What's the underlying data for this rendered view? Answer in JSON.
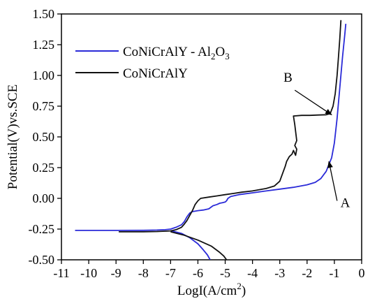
{
  "chart_data": {
    "type": "line",
    "xlabel": {
      "main": "LogI(A/cm",
      "sup": "2",
      "end": ")"
    },
    "ylabel": "Potential(V)vs.SCE",
    "xlim": [
      -11,
      0
    ],
    "ylim": [
      -0.5,
      1.5
    ],
    "x_ticks": [
      "-11",
      "-10",
      "-9",
      "-8",
      "-7",
      "-6",
      "-5",
      "-4",
      "-3",
      "-2",
      "-1",
      "0"
    ],
    "y_ticks": [
      "-0.50",
      "-0.25",
      "0.00",
      "0.25",
      "0.50",
      "0.75",
      "1.00",
      "1.25",
      "1.50"
    ],
    "legend_position": "top-left",
    "colors": {
      "blue": "#2a2ad8",
      "black": "#111111"
    },
    "series": [
      {
        "legend": {
          "part1": "CoNiCrAlY - Al",
          "sub1": "2",
          "part2": "O",
          "sub2": "3"
        },
        "color": "blue",
        "anodic": [
          [
            -10.5,
            -0.261
          ],
          [
            -9.0,
            -0.261
          ],
          [
            -8.0,
            -0.26
          ],
          [
            -7.5,
            -0.258
          ],
          [
            -7.2,
            -0.255
          ],
          [
            -7.0,
            -0.25
          ],
          [
            -6.8,
            -0.235
          ],
          [
            -6.6,
            -0.215
          ],
          [
            -6.5,
            -0.19
          ],
          [
            -6.4,
            -0.15
          ],
          [
            -6.3,
            -0.12
          ],
          [
            -6.2,
            -0.108
          ],
          [
            -6.0,
            -0.1
          ],
          [
            -5.8,
            -0.095
          ],
          [
            -5.6,
            -0.085
          ],
          [
            -5.45,
            -0.06
          ],
          [
            -5.3,
            -0.05
          ],
          [
            -5.2,
            -0.04
          ],
          [
            -5.1,
            -0.035
          ],
          [
            -5.0,
            -0.03
          ],
          [
            -4.95,
            -0.02
          ],
          [
            -4.9,
            0.0
          ],
          [
            -4.8,
            0.015
          ],
          [
            -4.5,
            0.03
          ],
          [
            -4.0,
            0.045
          ],
          [
            -3.5,
            0.06
          ],
          [
            -3.0,
            0.075
          ],
          [
            -2.5,
            0.09
          ],
          [
            -2.0,
            0.11
          ],
          [
            -1.7,
            0.13
          ],
          [
            -1.5,
            0.16
          ],
          [
            -1.3,
            0.22
          ],
          [
            -1.1,
            0.33
          ],
          [
            -1.0,
            0.45
          ],
          [
            -0.9,
            0.65
          ],
          [
            -0.8,
            0.9
          ],
          [
            -0.7,
            1.15
          ],
          [
            -0.62,
            1.33
          ],
          [
            -0.58,
            1.42
          ]
        ],
        "cathodic": [
          [
            -7.0,
            -0.262
          ],
          [
            -6.6,
            -0.285
          ],
          [
            -6.3,
            -0.32
          ],
          [
            -6.0,
            -0.37
          ],
          [
            -5.8,
            -0.42
          ],
          [
            -5.65,
            -0.46
          ],
          [
            -5.55,
            -0.5
          ]
        ]
      },
      {
        "legend": "CoNiCrAlY",
        "color": "black",
        "anodic": [
          [
            -8.9,
            -0.272
          ],
          [
            -8.0,
            -0.272
          ],
          [
            -7.5,
            -0.27
          ],
          [
            -7.0,
            -0.265
          ],
          [
            -6.8,
            -0.255
          ],
          [
            -6.6,
            -0.235
          ],
          [
            -6.5,
            -0.21
          ],
          [
            -6.4,
            -0.18
          ],
          [
            -6.3,
            -0.14
          ],
          [
            -6.2,
            -0.1
          ],
          [
            -6.1,
            -0.05
          ],
          [
            -6.0,
            -0.02
          ],
          [
            -5.9,
            0.0
          ],
          [
            -5.6,
            0.01
          ],
          [
            -5.3,
            0.02
          ],
          [
            -5.0,
            0.03
          ],
          [
            -4.7,
            0.04
          ],
          [
            -4.4,
            0.05
          ],
          [
            -4.0,
            0.06
          ],
          [
            -3.5,
            0.08
          ],
          [
            -3.2,
            0.1
          ],
          [
            -3.0,
            0.14
          ],
          [
            -2.9,
            0.2
          ],
          [
            -2.8,
            0.26
          ],
          [
            -2.75,
            0.3
          ],
          [
            -2.65,
            0.34
          ],
          [
            -2.55,
            0.36
          ],
          [
            -2.5,
            0.39
          ],
          [
            -2.42,
            0.35
          ],
          [
            -2.38,
            0.4
          ],
          [
            -2.45,
            0.43
          ],
          [
            -2.38,
            0.47
          ],
          [
            -2.45,
            0.6
          ],
          [
            -2.5,
            0.67
          ],
          [
            -2.2,
            0.675
          ],
          [
            -1.9,
            0.675
          ],
          [
            -1.6,
            0.678
          ],
          [
            -1.3,
            0.68
          ],
          [
            -1.15,
            0.69
          ],
          [
            -1.05,
            0.75
          ],
          [
            -0.97,
            0.85
          ],
          [
            -0.9,
            1.0
          ],
          [
            -0.85,
            1.15
          ],
          [
            -0.8,
            1.3
          ],
          [
            -0.76,
            1.45
          ]
        ],
        "cathodic": [
          [
            -7.0,
            -0.272
          ],
          [
            -6.5,
            -0.3
          ],
          [
            -6.0,
            -0.34
          ],
          [
            -5.5,
            -0.39
          ],
          [
            -5.2,
            -0.44
          ],
          [
            -5.05,
            -0.47
          ],
          [
            -4.95,
            -0.5
          ]
        ]
      }
    ],
    "annotations": [
      {
        "label": "A",
        "text_at": [
          -0.6,
          -0.07
        ],
        "arrow_from": [
          -0.9,
          -0.02
        ],
        "arrow_to": [
          -1.2,
          0.3
        ]
      },
      {
        "label": "B",
        "text_at": [
          -2.7,
          0.95
        ],
        "arrow_from": [
          -2.45,
          0.88
        ],
        "arrow_to": [
          -1.1,
          0.68
        ]
      }
    ]
  }
}
